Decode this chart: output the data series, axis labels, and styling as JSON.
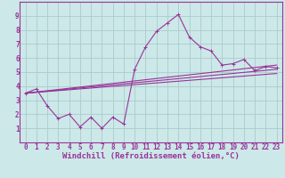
{
  "background_color": "#cce8e8",
  "grid_color": "#aacccc",
  "line_color": "#993399",
  "spine_color": "#993399",
  "xlabel": "Windchill (Refroidissement éolien,°C)",
  "xlim": [
    -0.5,
    23.5
  ],
  "ylim": [
    0,
    10
  ],
  "xticks": [
    0,
    1,
    2,
    3,
    4,
    5,
    6,
    7,
    8,
    9,
    10,
    11,
    12,
    13,
    14,
    15,
    16,
    17,
    18,
    19,
    20,
    21,
    22,
    23
  ],
  "yticks": [
    1,
    2,
    3,
    4,
    5,
    6,
    7,
    8,
    9
  ],
  "line1_x": [
    0,
    1,
    2,
    3,
    4,
    5,
    6,
    7,
    8,
    9,
    10,
    11,
    12,
    13,
    14,
    15,
    16,
    17,
    18,
    19,
    20,
    21,
    22,
    23
  ],
  "line1_y": [
    3.5,
    3.8,
    2.6,
    1.7,
    2.0,
    1.1,
    1.8,
    1.0,
    1.8,
    1.3,
    5.2,
    6.8,
    7.9,
    8.5,
    9.1,
    7.5,
    6.8,
    6.5,
    5.5,
    5.6,
    5.9,
    5.1,
    5.4,
    5.3
  ],
  "line2_x": [
    0,
    23
  ],
  "line2_y": [
    3.5,
    5.5
  ],
  "line3_x": [
    0,
    23
  ],
  "line3_y": [
    3.5,
    4.9
  ],
  "line4_x": [
    0,
    23
  ],
  "line4_y": [
    3.5,
    5.2
  ],
  "tick_fontsize": 5.5,
  "xlabel_fontsize": 6.5,
  "lw": 0.8,
  "marker_size": 2.5
}
